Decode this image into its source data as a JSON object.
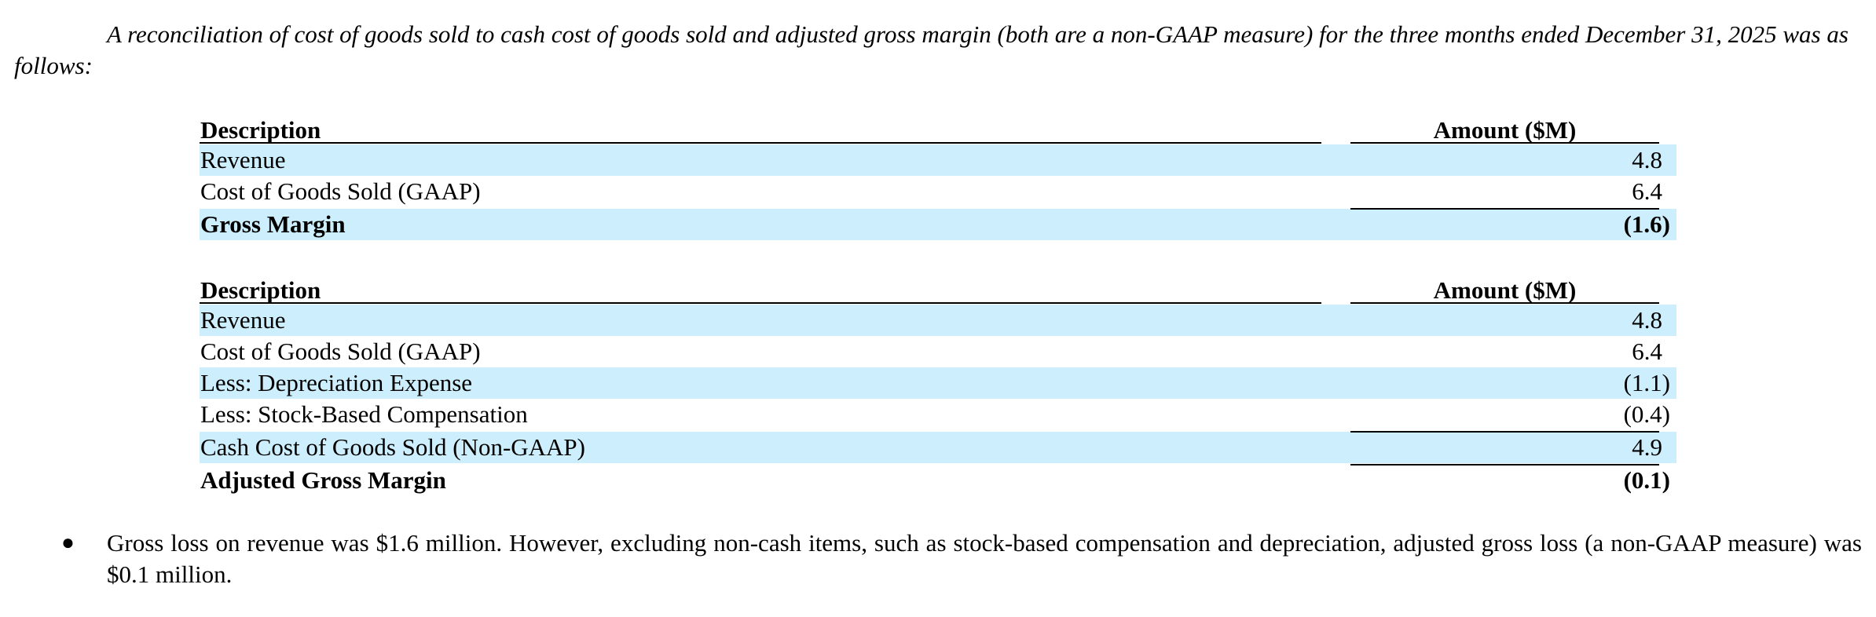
{
  "intro_text": "A reconciliation of cost of goods sold to cash cost of goods sold and adjusted gross margin (both are a non-GAAP measure) for the three months ended December 31, 2025 was as follows:",
  "table1": {
    "header": {
      "description": "Description",
      "amount": "Amount ($M)"
    },
    "rows": [
      {
        "description": "Revenue",
        "amount": "4.8"
      },
      {
        "description": "Cost of Goods Sold (GAAP)",
        "amount": "6.4"
      },
      {
        "description": "Gross Margin",
        "amount": "(1.6)"
      }
    ]
  },
  "table2": {
    "header": {
      "description": "Description",
      "amount": "Amount ($M)"
    },
    "rows": [
      {
        "description": "Revenue",
        "amount": "4.8"
      },
      {
        "description": "Cost of Goods Sold (GAAP)",
        "amount": "6.4"
      },
      {
        "description": "Less: Depreciation Expense",
        "amount": "(1.1)"
      },
      {
        "description": "Less: Stock-Based Compensation",
        "amount": "(0.4)"
      },
      {
        "description": "Cash Cost of Goods Sold (Non-GAAP)",
        "amount": "4.9"
      },
      {
        "description": "Adjusted Gross Margin",
        "amount": "(0.1)"
      }
    ]
  },
  "bullet": {
    "symbol": "●",
    "text": "Gross loss on revenue was $1.6 million. However, excluding non-cash items, such as stock-based compensation and depreciation, adjusted gross loss (a non-GAAP measure) was $0.1 million."
  },
  "colors": {
    "row_shade": "#cdeefc",
    "text": "#000000"
  }
}
